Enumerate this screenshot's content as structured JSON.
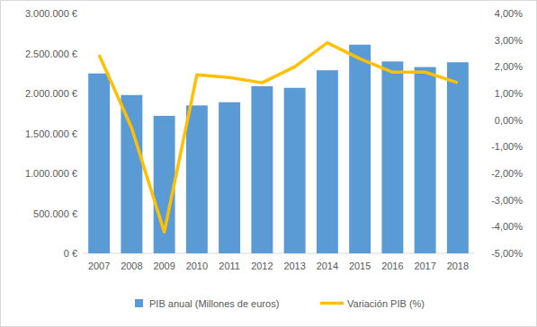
{
  "chart_data": {
    "type": "bar",
    "categories": [
      "2007",
      "2008",
      "2009",
      "2010",
      "2011",
      "2012",
      "2013",
      "2014",
      "2015",
      "2016",
      "2017",
      "2018"
    ],
    "series": [
      {
        "name": "PIB anual (Millones de euros)",
        "type": "bar",
        "color": "#5b9bd5",
        "values": [
          2250000,
          1980000,
          1720000,
          1850000,
          1890000,
          2090000,
          2070000,
          2290000,
          2610000,
          2400000,
          2330000,
          2390000
        ]
      },
      {
        "name": "Variación PIB (%)",
        "type": "line",
        "color": "#ffc000",
        "axis": "y2",
        "line_style": "solid",
        "values": [
          2.45,
          -0.3,
          -4.2,
          1.7,
          1.6,
          1.4,
          2.0,
          2.9,
          2.3,
          1.8,
          1.8,
          1.4
        ]
      }
    ],
    "ylim": [
      0,
      3000000
    ],
    "yticks": [
      {
        "value": 0,
        "label": "0 €"
      },
      {
        "value": 500000,
        "label": "500.000 €"
      },
      {
        "value": 1000000,
        "label": "1.000.000 €"
      },
      {
        "value": 1500000,
        "label": "1.500.000 €"
      },
      {
        "value": 2000000,
        "label": "2.000.000 €"
      },
      {
        "value": 2500000,
        "label": "2.500.000 €"
      },
      {
        "value": 3000000,
        "label": "3.000.000 €"
      }
    ],
    "y2lim": [
      -5,
      4
    ],
    "y2ticks": [
      {
        "value": -5,
        "label": "-5,00%"
      },
      {
        "value": -4,
        "label": "-4,00%"
      },
      {
        "value": -3,
        "label": "-3,00%"
      },
      {
        "value": -2,
        "label": "-2,00%"
      },
      {
        "value": -1,
        "label": "-1,00%"
      },
      {
        "value": 0,
        "label": "0,00%"
      },
      {
        "value": 1,
        "label": "1,00%"
      },
      {
        "value": 2,
        "label": "2,00%"
      },
      {
        "value": 3,
        "label": "3,00%"
      },
      {
        "value": 4,
        "label": "4,00%"
      }
    ],
    "grid": false,
    "legend": "bottom"
  }
}
